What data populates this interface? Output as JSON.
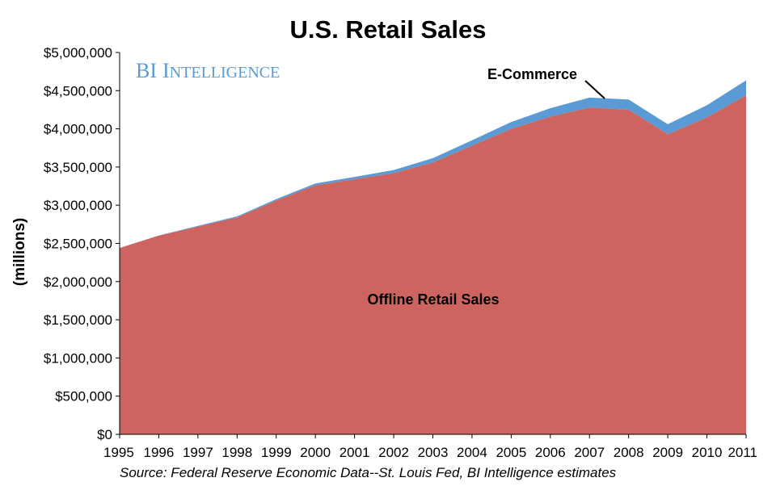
{
  "chart_data": {
    "type": "area",
    "stacked": true,
    "title": "U.S. Retail Sales",
    "ylabel": "(millions)",
    "xlabel": "",
    "x": [
      "1995",
      "1996",
      "1997",
      "1998",
      "1999",
      "2000",
      "2001",
      "2002",
      "2003",
      "2004",
      "2005",
      "2006",
      "2007",
      "2008",
      "2009",
      "2010",
      "2011"
    ],
    "ylim": [
      0,
      5000000
    ],
    "yticks": [
      "$0",
      "$500,000",
      "$1,000,000",
      "$1,500,000",
      "$2,000,000",
      "$2,500,000",
      "$3,000,000",
      "$3,500,000",
      "$4,000,000",
      "$4,500,000",
      "$5,000,000"
    ],
    "grid": false,
    "series": [
      {
        "name": "Offline Retail Sales",
        "color": "#cd6460",
        "values": [
          2440000,
          2600000,
          2720000,
          2840000,
          3060000,
          3260000,
          3340000,
          3420000,
          3560000,
          3780000,
          4000000,
          4160000,
          4280000,
          4250000,
          3930000,
          4150000,
          4440000
        ]
      },
      {
        "name": "E-Commerce",
        "color": "#5b9bd5",
        "values": [
          1000,
          5000,
          10000,
          14000,
          20000,
          25000,
          31000,
          40000,
          56000,
          70000,
          89000,
          110000,
          130000,
          134000,
          130000,
          160000,
          195000
        ]
      }
    ],
    "watermark": {
      "big1": "B",
      "small1": "I",
      "big2": "I",
      "small2": "NTELLIGENCE"
    },
    "source": "Source: Federal Reserve Economic Data--St. Louis Fed, BI Intelligence estimates"
  }
}
